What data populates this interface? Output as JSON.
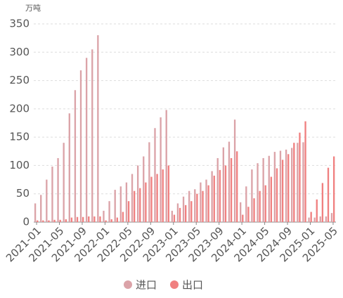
{
  "chart_data": {
    "type": "bar",
    "y_unit": "万吨",
    "categories": [
      "2021-01",
      null,
      null,
      null,
      "2021-05",
      null,
      null,
      null,
      "2021-09",
      null,
      null,
      null,
      "2022-01",
      null,
      null,
      null,
      "2022-05",
      null,
      null,
      null,
      "2022-09",
      null,
      null,
      null,
      "2023-01",
      null,
      null,
      null,
      "2023-05",
      null,
      null,
      null,
      "2023-09",
      null,
      null,
      null,
      "2024-01",
      null,
      null,
      null,
      "2024-05",
      null,
      null,
      null,
      "2024-09",
      null,
      null,
      null,
      "2025-01",
      null,
      null,
      null,
      "2025-05"
    ],
    "series": [
      {
        "name": "进口",
        "color": "#dba3a8",
        "values": [
          33,
          48,
          75,
          98,
          113,
          140,
          192,
          233,
          268,
          290,
          305,
          330,
          20,
          37,
          57,
          63,
          70,
          85,
          100,
          116,
          141,
          166,
          185,
          198,
          20,
          33,
          45,
          55,
          58,
          70,
          75,
          90,
          113,
          132,
          142,
          181,
          35,
          63,
          93,
          104,
          113,
          117,
          124,
          126,
          128,
          131,
          140,
          141,
          8,
          8,
          10,
          10,
          16
        ]
      },
      {
        "name": "出口",
        "color": "#f08080",
        "values": [
          3,
          3,
          3,
          4,
          4,
          5,
          8,
          9,
          9,
          10,
          10,
          10,
          3,
          5,
          8,
          18,
          37,
          55,
          60,
          70,
          80,
          85,
          93,
          100,
          13,
          25,
          30,
          37,
          50,
          55,
          65,
          82,
          92,
          100,
          113,
          125,
          13,
          27,
          42,
          55,
          65,
          80,
          95,
          110,
          120,
          140,
          158,
          178,
          18,
          40,
          69,
          96,
          116
        ]
      }
    ],
    "ylim": [
      0,
      350
    ],
    "yticks": [
      0,
      50,
      100,
      150,
      200,
      250,
      300,
      350
    ],
    "grid": true,
    "legend": "bottom"
  }
}
